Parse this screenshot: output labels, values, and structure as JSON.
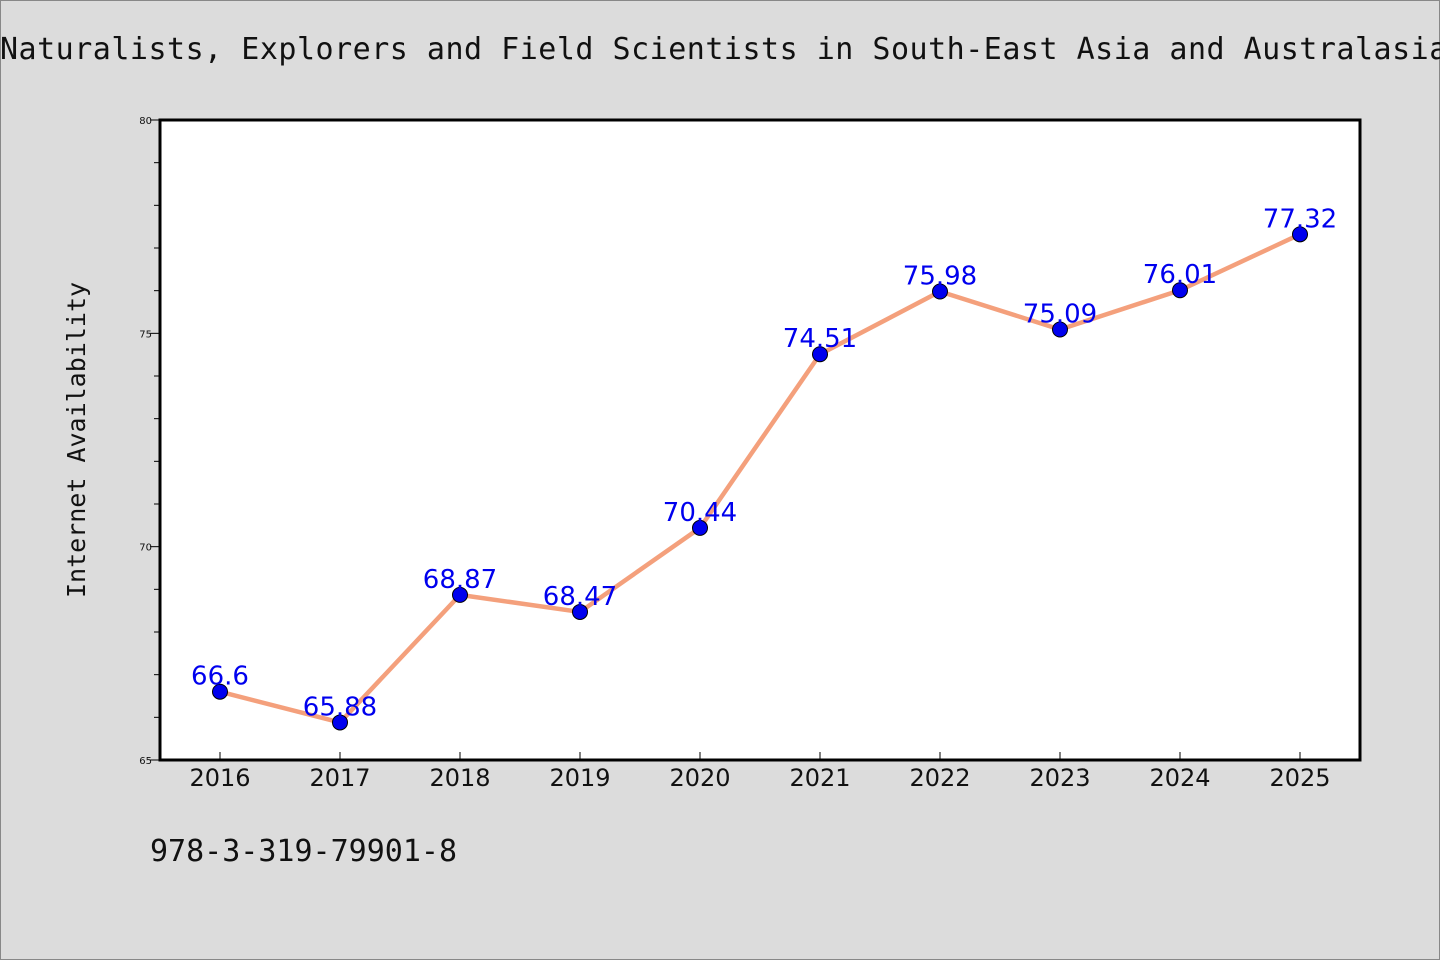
{
  "page": {
    "title": "Naturalists, Explorers and Field Scientists in South-East Asia and Australasia",
    "footer_text": "978-3-319-79901-8"
  },
  "colors": {
    "background": "#dcdcdc",
    "plot_background": "#ffffff",
    "line": "#f4a07c",
    "marker": "#0000ee",
    "data_label": "#0000ee"
  },
  "chart_data": {
    "type": "line",
    "title": "Naturalists, Explorers and Field Scientists in South-East Asia and Australasia",
    "xlabel": "",
    "ylabel": "Internet Availability",
    "categories": [
      "2016",
      "2017",
      "2018",
      "2019",
      "2020",
      "2021",
      "2022",
      "2023",
      "2024",
      "2025"
    ],
    "series": [
      {
        "values": [
          66.6,
          65.88,
          68.87,
          68.47,
          70.44,
          74.51,
          75.98,
          75.09,
          76.01,
          77.32
        ],
        "data_labels": [
          "66.6",
          "65.88",
          "68.87",
          "68.47",
          "70.44",
          "74.51",
          "75.98",
          "75.09",
          "76.01",
          "77.32"
        ]
      }
    ],
    "ylim": [
      65,
      80
    ],
    "yticks": [
      65,
      70,
      75,
      80
    ],
    "ytick_labels": [
      "65",
      "70",
      "75",
      "80"
    ],
    "y_minor_step": 1,
    "grid": false,
    "legend": "none"
  }
}
